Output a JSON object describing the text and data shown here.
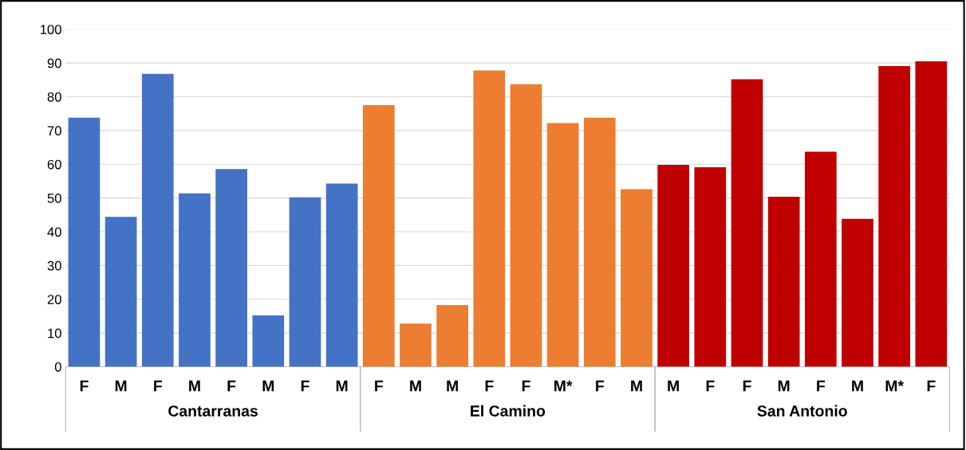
{
  "chart_data": {
    "type": "bar",
    "categories": [
      "F",
      "M",
      "F",
      "M",
      "F",
      "M",
      "F",
      "M",
      "F",
      "M",
      "M",
      "F",
      "F",
      "M*",
      "F",
      "M",
      "M",
      "F",
      "F",
      "M",
      "F",
      "M",
      "M*",
      "F"
    ],
    "series": [
      {
        "name": "Cantarranas",
        "color": "#4472c4",
        "values": [
          73.8,
          44.4,
          86.8,
          51.4,
          58.6,
          15.2,
          50.2,
          54.3,
          null,
          null,
          null,
          null,
          null,
          null,
          null,
          null,
          null,
          null,
          null,
          null,
          null,
          null,
          null,
          null
        ]
      },
      {
        "name": "El Camino",
        "color": "#ed7d31",
        "values": [
          null,
          null,
          null,
          null,
          null,
          null,
          null,
          null,
          77.5,
          12.8,
          18.3,
          87.8,
          83.7,
          72.2,
          73.8,
          52.6,
          null,
          null,
          null,
          null,
          null,
          null,
          null,
          null
        ]
      },
      {
        "name": "San Antonio",
        "color": "#c00000",
        "values": [
          null,
          null,
          null,
          null,
          null,
          null,
          null,
          null,
          null,
          null,
          null,
          null,
          null,
          null,
          null,
          null,
          59.8,
          59.1,
          85.2,
          50.4,
          63.7,
          43.8,
          89.1,
          90.5
        ]
      }
    ],
    "ylim": [
      0,
      100
    ],
    "yticks": [
      0,
      10,
      20,
      30,
      40,
      50,
      60,
      70,
      80,
      90,
      100
    ],
    "grid": "y"
  }
}
